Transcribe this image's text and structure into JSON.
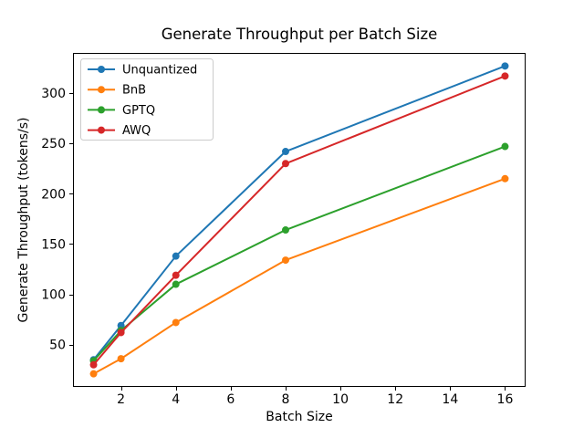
{
  "chart_data": {
    "type": "line",
    "title": "Generate Throughput per Batch Size",
    "xlabel": "Batch Size",
    "ylabel": "Generate Throughput (tokens/s)",
    "x": [
      1,
      2,
      4,
      8,
      16
    ],
    "series": [
      {
        "name": "Unquantized",
        "color": "#1f77b4",
        "values": [
          35,
          69,
          138,
          242,
          327
        ]
      },
      {
        "name": "BnB",
        "color": "#ff7f0e",
        "values": [
          21,
          36,
          72,
          134,
          215
        ]
      },
      {
        "name": "GPTQ",
        "color": "#2ca02c",
        "values": [
          34,
          64,
          110,
          164,
          247
        ]
      },
      {
        "name": "AWQ",
        "color": "#d62728",
        "values": [
          30,
          62,
          119,
          230,
          317
        ]
      }
    ],
    "xticks": [
      2,
      4,
      6,
      8,
      10,
      12,
      14,
      16
    ],
    "yticks": [
      50,
      100,
      150,
      200,
      250,
      300
    ],
    "xlim": [
      0.25,
      16.75
    ],
    "ylim": [
      8,
      340
    ],
    "grid": false,
    "legend_position": "upper left",
    "marker": "circle",
    "axis_color": "#000000",
    "legend_border_color": "#cccccc",
    "background_color": "#ffffff"
  }
}
